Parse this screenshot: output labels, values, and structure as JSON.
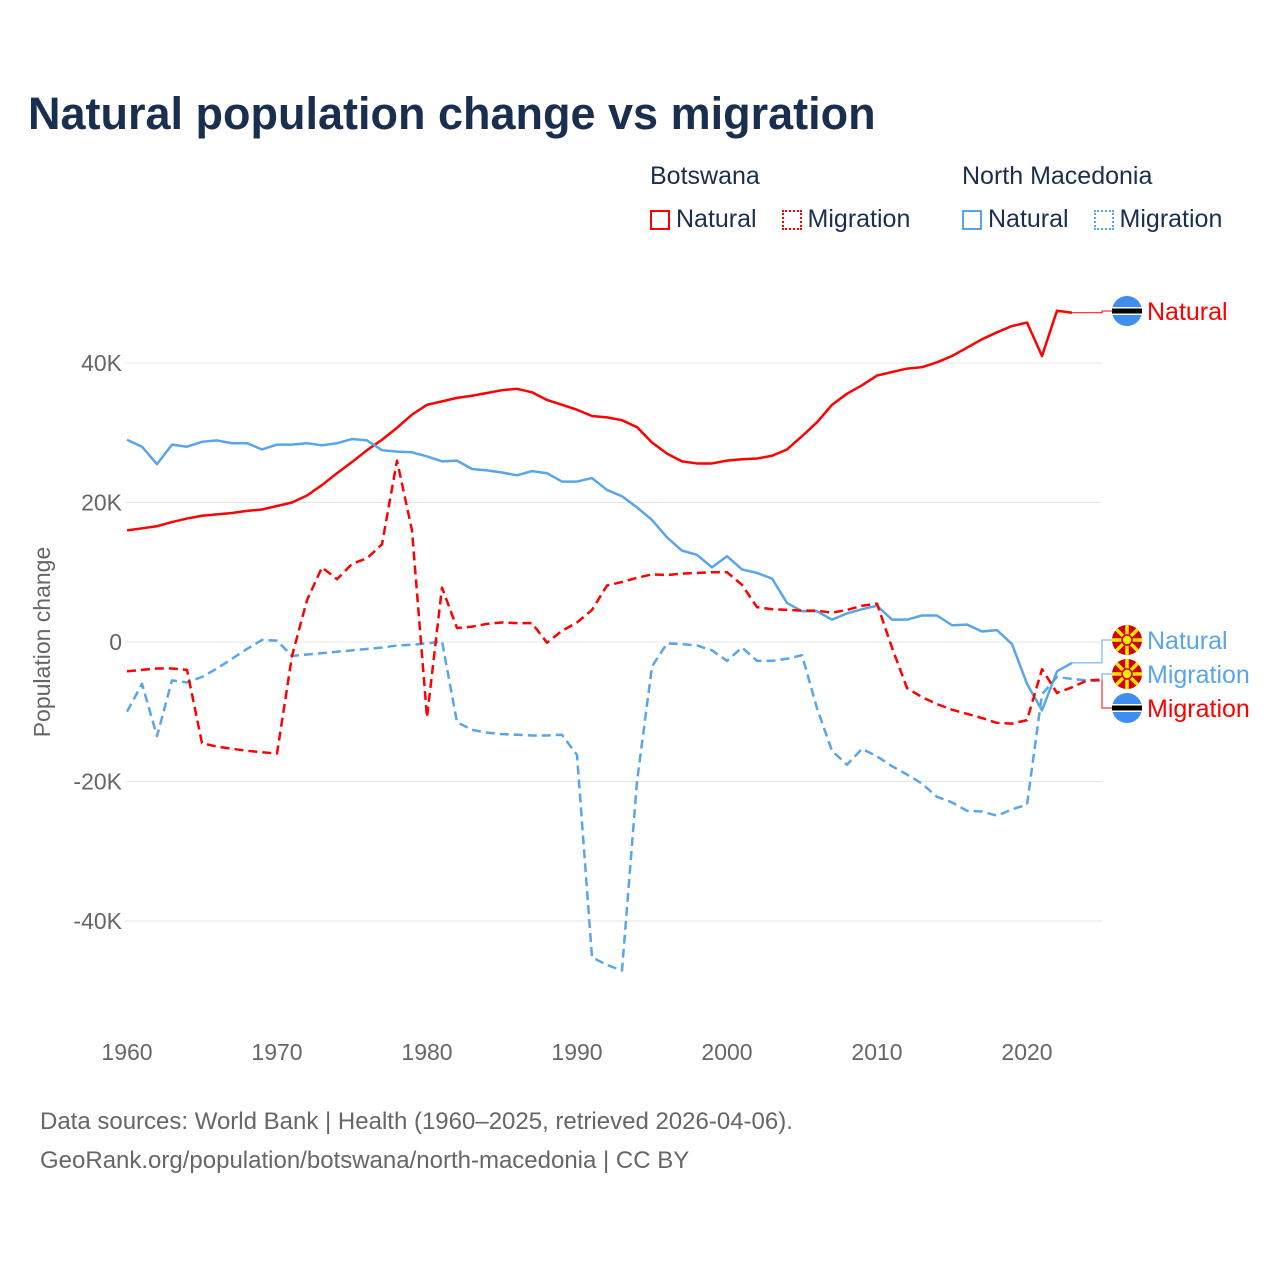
{
  "title": "Natural population change vs migration",
  "legend": {
    "groups": [
      {
        "name": "Botswana",
        "items": [
          "Natural",
          "Migration"
        ],
        "color": "#ff0000"
      },
      {
        "name": "North Macedonia",
        "items": [
          "Natural",
          "Migration"
        ],
        "color": "#5aa5ea"
      }
    ]
  },
  "footer": {
    "line1": "Data sources: World Bank | Health (1960–2025, retrieved 2026-04-06).",
    "line2": "GeoRank.org/population/botswana/north-macedonia | CC BY"
  },
  "chart_data": {
    "type": "line",
    "title": "Natural population change vs migration",
    "xlabel": "",
    "ylabel": "Population change",
    "xlim": [
      1960,
      2025
    ],
    "ylim": [
      -50000,
      50000
    ],
    "x_ticks": [
      1960,
      1970,
      1980,
      1990,
      2000,
      2010,
      2020
    ],
    "x_tick_labels": [
      "1960",
      "1970",
      "1980",
      "1990",
      "2000",
      "2010",
      "2020"
    ],
    "y_ticks": [
      40000,
      20000,
      0,
      -20000,
      -40000
    ],
    "y_tick_labels": [
      "40K",
      "20K",
      "0",
      "-20K",
      "-40K"
    ],
    "grid": true,
    "legend_position": "top-right",
    "series": [
      {
        "name": "Botswana Natural",
        "end_label": "Natural",
        "country": "Botswana",
        "color": "#ff0000",
        "dash": false,
        "start_year": 1960,
        "values": [
          16.0,
          16.3,
          16.6,
          17.2,
          17.7,
          18.1,
          18.3,
          18.5,
          18.8,
          19.0,
          19.5,
          20.0,
          21.0,
          22.5,
          24.2,
          25.8,
          27.5,
          29.0,
          30.7,
          32.6,
          34.0,
          34.5,
          35.0,
          35.3,
          35.7,
          36.1,
          36.3,
          35.8,
          34.7,
          34.0,
          33.3,
          32.4,
          32.2,
          31.8,
          30.8,
          28.6,
          27.0,
          25.9,
          25.6,
          25.6,
          26.0,
          26.2,
          26.3,
          26.7,
          27.6,
          29.5,
          31.5,
          34.0,
          35.6,
          36.8,
          38.2,
          38.7,
          39.2,
          39.4,
          40.1,
          41.0,
          42.2,
          43.4,
          44.4,
          45.3,
          45.8,
          41.0,
          47.5,
          47.2
        ]
      },
      {
        "name": "North Macedonia Natural",
        "end_label": "Natural",
        "country": "North Macedonia",
        "color": "#5aa5ea",
        "dash": false,
        "start_year": 1960,
        "values": [
          29.0,
          28.0,
          25.5,
          28.3,
          28.0,
          28.7,
          28.9,
          28.5,
          28.5,
          27.6,
          28.3,
          28.3,
          28.5,
          28.2,
          28.5,
          29.1,
          28.9,
          27.5,
          27.3,
          27.2,
          26.6,
          25.9,
          26.0,
          24.8,
          24.6,
          24.3,
          23.9,
          24.5,
          24.2,
          23.0,
          23.0,
          23.5,
          21.8,
          20.9,
          19.3,
          17.5,
          15.0,
          13.1,
          12.5,
          10.7,
          12.3,
          10.4,
          9.9,
          9.1,
          5.6,
          4.4,
          4.4,
          3.2,
          4.1,
          4.7,
          5.2,
          3.2,
          3.2,
          3.8,
          3.8,
          2.4,
          2.5,
          1.5,
          1.7,
          -0.3,
          -6.0,
          -9.8,
          -4.2,
          -3.0
        ]
      },
      {
        "name": "North Macedonia Migration",
        "end_label": "Migration",
        "country": "North Macedonia",
        "color": "#5aa5ea",
        "dash": true,
        "start_year": 1960,
        "values": [
          -10.0,
          -6.0,
          -13.5,
          -5.5,
          -5.8,
          -5.0,
          -3.8,
          -2.4,
          -1.0,
          0.3,
          0.2,
          -2.0,
          -1.8,
          -1.6,
          -1.4,
          -1.2,
          -1.0,
          -0.8,
          -0.5,
          -0.4,
          -0.2,
          0.1,
          -11.5,
          -12.6,
          -13.0,
          -13.2,
          -13.3,
          -13.4,
          -13.4,
          -13.3,
          -16.2,
          -45.2,
          -46.3,
          -47.1,
          -20.0,
          -3.5,
          -0.2,
          -0.3,
          -0.5,
          -1.2,
          -2.7,
          -0.8,
          -2.7,
          -2.7,
          -2.4,
          -1.9,
          -9.5,
          -15.6,
          -17.6,
          -15.3,
          -16.4,
          -17.8,
          -19.0,
          -20.3,
          -22.2,
          -23.0,
          -24.2,
          -24.3,
          -24.9,
          -24.0,
          -23.3,
          -7.5,
          -5.0,
          -5.3,
          -5.5,
          -5.6
        ]
      },
      {
        "name": "Botswana Migration",
        "end_label": "Migration",
        "country": "Botswana",
        "color": "#ff0000",
        "dash": true,
        "start_year": 1960,
        "values": [
          -4.2,
          -4.0,
          -3.8,
          -3.8,
          -4.0,
          -14.5,
          -15.0,
          -15.3,
          -15.6,
          -15.8,
          -16.0,
          -2.0,
          6.0,
          10.7,
          9.0,
          11.2,
          12.0,
          14.0,
          26.0,
          16.0,
          -10.8,
          7.8,
          2.0,
          2.2,
          2.6,
          2.8,
          2.7,
          2.7,
          -0.1,
          1.6,
          2.8,
          4.6,
          8.1,
          8.6,
          9.2,
          9.7,
          9.6,
          9.8,
          9.9,
          10.0,
          10.0,
          8.2,
          5.0,
          4.7,
          4.6,
          4.5,
          4.5,
          4.2,
          4.6,
          5.2,
          5.5,
          -0.8,
          -6.6,
          -7.9,
          -8.9,
          -9.7,
          -10.3,
          -10.9,
          -11.6,
          -11.7,
          -11.2,
          -3.9,
          -7.3,
          -6.5,
          -5.5,
          -5.4
        ]
      }
    ],
    "value_unit": "thousands"
  }
}
